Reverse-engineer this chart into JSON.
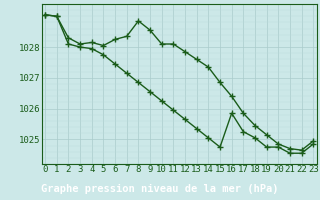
{
  "line1_x": [
    0,
    1,
    2,
    3,
    4,
    5,
    6,
    7,
    8,
    9,
    10,
    11,
    12,
    13,
    14,
    15,
    16,
    17,
    18,
    19,
    20,
    21,
    22,
    23
  ],
  "line1_y": [
    1029.05,
    1029.0,
    1028.3,
    1028.1,
    1028.15,
    1028.05,
    1028.25,
    1028.35,
    1028.85,
    1028.55,
    1028.1,
    1028.1,
    1027.85,
    1027.6,
    1027.35,
    1026.85,
    1026.4,
    1025.85,
    1025.45,
    1025.15,
    1024.85,
    1024.7,
    1024.65,
    1024.95
  ],
  "line2_x": [
    0,
    1,
    2,
    3,
    4,
    5,
    6,
    7,
    8,
    9,
    10,
    11,
    12,
    13,
    14,
    15,
    16,
    17,
    18,
    19,
    20,
    21,
    22,
    23
  ],
  "line2_y": [
    1029.05,
    1029.0,
    1028.1,
    1028.0,
    1027.95,
    1027.75,
    1027.45,
    1027.15,
    1026.85,
    1026.55,
    1026.25,
    1025.95,
    1025.65,
    1025.35,
    1025.05,
    1024.75,
    1025.85,
    1025.25,
    1025.05,
    1024.75,
    1024.75,
    1024.55,
    1024.55,
    1024.85
  ],
  "line_color": "#1a5c1a",
  "marker": "+",
  "markersize": 4,
  "markeredgewidth": 1.0,
  "linewidth": 1.0,
  "bg_color": "#cce8e8",
  "plot_bg_color": "#cce8e8",
  "grid_color": "#aacccc",
  "grid_minor_color": "#bbdddd",
  "xlabel": "Graphe pression niveau de la mer (hPa)",
  "xlabel_color": "#ffffff",
  "xlabel_bg": "#1a5c1a",
  "xlabel_fontsize": 7.5,
  "tick_color": "#1a5c1a",
  "tick_fontsize": 6.5,
  "ytick_labels": [
    "1025",
    "1026",
    "1027",
    "1028"
  ],
  "ytick_values": [
    1025,
    1026,
    1027,
    1028
  ],
  "ylim": [
    1024.2,
    1029.4
  ],
  "xlim": [
    -0.3,
    23.3
  ]
}
